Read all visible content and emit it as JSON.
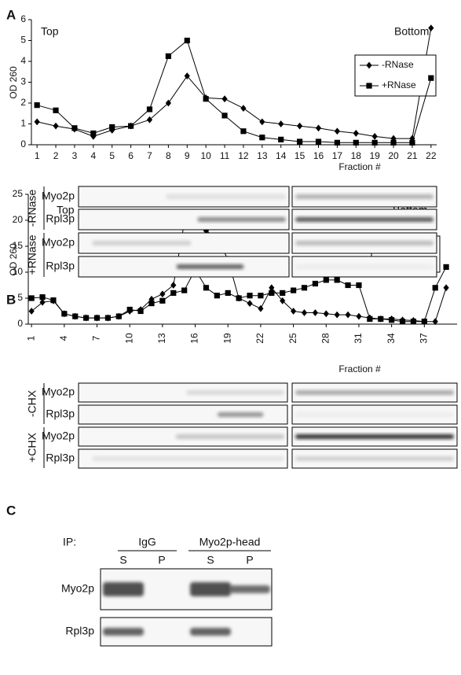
{
  "chart_data": [
    {
      "type": "line",
      "top_label": "Top",
      "bottom_label": "Bottom",
      "ylabel": "OD 260",
      "xlabel": "Fraction #",
      "x": [
        1,
        2,
        3,
        4,
        5,
        6,
        7,
        8,
        9,
        10,
        11,
        12,
        13,
        14,
        15,
        16,
        17,
        18,
        19,
        20,
        21,
        22
      ],
      "xlim": [
        0.7,
        22.3
      ],
      "xticks": [
        1,
        2,
        3,
        4,
        5,
        6,
        7,
        8,
        9,
        10,
        11,
        12,
        13,
        14,
        15,
        16,
        17,
        18,
        19,
        20,
        21,
        22
      ],
      "ylim": [
        0,
        6
      ],
      "yticks": [
        0,
        1,
        2,
        3,
        4,
        5,
        6
      ],
      "series": [
        {
          "name": "-RNase",
          "color": "#000000",
          "marker": "diamond",
          "values": [
            1.1,
            0.9,
            0.75,
            0.4,
            0.7,
            0.9,
            1.2,
            2.0,
            3.3,
            2.25,
            2.2,
            1.75,
            1.1,
            1.0,
            0.9,
            0.8,
            0.65,
            0.55,
            0.4,
            0.3,
            0.3,
            5.6
          ]
        },
        {
          "name": "+RNase",
          "color": "#000000",
          "marker": "square",
          "values": [
            1.9,
            1.65,
            0.8,
            0.55,
            0.85,
            0.9,
            1.7,
            4.25,
            5.0,
            2.2,
            1.4,
            0.65,
            0.35,
            0.25,
            0.15,
            0.15,
            0.1,
            0.1,
            0.1,
            0.1,
            0.1,
            3.2
          ]
        }
      ]
    },
    {
      "type": "line",
      "top_label": "Top",
      "bottom_label": "Bottom",
      "ylabel": "OD 260",
      "xlabel": "Fraction #",
      "x": [
        1,
        2,
        3,
        4,
        5,
        6,
        7,
        8,
        9,
        10,
        11,
        12,
        13,
        14,
        15,
        16,
        17,
        18,
        19,
        20,
        21,
        22,
        23,
        24,
        25,
        26,
        27,
        28,
        29,
        30,
        31,
        32,
        33,
        34,
        35,
        36,
        37,
        38,
        39
      ],
      "xlim": [
        0.7,
        40
      ],
      "xticks": [
        1,
        4,
        7,
        10,
        13,
        16,
        19,
        22,
        25,
        28,
        31,
        34,
        37
      ],
      "ylim": [
        0,
        25
      ],
      "yticks": [
        0,
        5,
        10,
        15,
        20,
        25
      ],
      "series": [
        {
          "name": "-CHX",
          "color": "#000000",
          "marker": "diamond",
          "values": [
            2.5,
            4.2,
            4.5,
            2,
            1.5,
            1.2,
            1.2,
            1.2,
            1.5,
            2.5,
            2.8,
            4.8,
            5.8,
            7.5,
            19.5,
            21.5,
            18,
            16.5,
            12.5,
            5,
            4,
            3,
            7,
            4.5,
            2.5,
            2.2,
            2.2,
            2,
            1.8,
            1.8,
            1.5,
            1.2,
            1.0,
            1.0,
            0.8,
            0.7,
            0.5,
            0.5,
            7
          ]
        },
        {
          "name": "+CHX",
          "color": "#000000",
          "marker": "square",
          "values": [
            5,
            5.2,
            4.6,
            2,
            1.5,
            1.2,
            1.2,
            1.2,
            1.5,
            2.8,
            2.5,
            4,
            4.5,
            6,
            6.5,
            10.5,
            7,
            5.5,
            6,
            5,
            5.5,
            5.5,
            6,
            6,
            6.5,
            7,
            7.8,
            8.5,
            8.5,
            7.5,
            7.5,
            1,
            1,
            0.8,
            0.5,
            0.5,
            0.5,
            7,
            11
          ]
        }
      ]
    }
  ],
  "panel_labels": [
    "A",
    "B",
    "C"
  ],
  "blots": [
    {
      "conditions": [
        {
          "name": "-RNase",
          "rows": [
            "Myo2p",
            "Rpl3p"
          ]
        },
        {
          "name": "+RNase",
          "rows": [
            "Myo2p",
            "Rpl3p"
          ]
        }
      ]
    },
    {
      "conditions": [
        {
          "name": "-CHX",
          "rows": [
            "Myo2p",
            "Rpl3p"
          ]
        },
        {
          "name": "+CHX",
          "rows": [
            "Myo2p",
            "Rpl3p"
          ]
        }
      ]
    }
  ],
  "ip": {
    "label": "IP:",
    "groups": [
      {
        "name": "IgG",
        "lanes": [
          "S",
          "P"
        ]
      },
      {
        "name": "Myo2p-head",
        "lanes": [
          "S",
          "P"
        ]
      }
    ],
    "rows": [
      "Myo2p",
      "Rpl3p"
    ]
  }
}
